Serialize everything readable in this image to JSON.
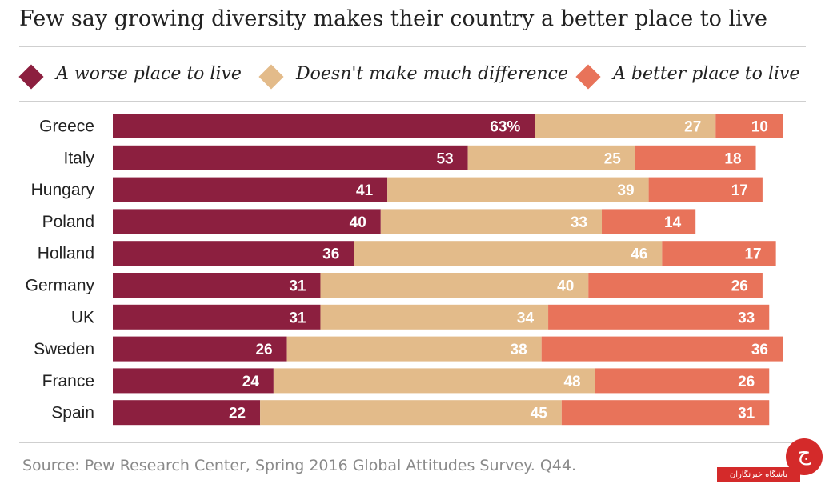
{
  "title": "Few say growing diversity makes their country a better place to live",
  "source": "Source: Pew Research Center, Spring 2016 Global Attitudes Survey. Q44.",
  "logo": {
    "text": "باشگاه خبرنگاران",
    "glyph": "ج"
  },
  "legend": [
    {
      "label": "A worse place to live",
      "color": "#8c1f3f"
    },
    {
      "label": "Doesn't make much difference",
      "color": "#e3bb8a"
    },
    {
      "label": "A better place to live",
      "color": "#e8735a"
    }
  ],
  "chart_data": {
    "type": "bar",
    "orientation": "horizontal",
    "stacked": true,
    "unit": "%",
    "categories": [
      "Greece",
      "Italy",
      "Hungary",
      "Poland",
      "Holland",
      "Germany",
      "UK",
      "Sweden",
      "France",
      "Spain"
    ],
    "series": [
      {
        "name": "A worse place to live",
        "color": "#8c1f3f",
        "values": [
          63,
          53,
          41,
          40,
          36,
          31,
          31,
          26,
          24,
          22
        ]
      },
      {
        "name": "Doesn't make much difference",
        "color": "#e3bb8a",
        "values": [
          27,
          25,
          39,
          33,
          46,
          40,
          34,
          38,
          48,
          45
        ]
      },
      {
        "name": "A better place to live",
        "color": "#e8735a",
        "values": [
          10,
          18,
          17,
          14,
          17,
          26,
          33,
          36,
          26,
          31
        ]
      }
    ],
    "grid": false,
    "legend_position": "top"
  }
}
